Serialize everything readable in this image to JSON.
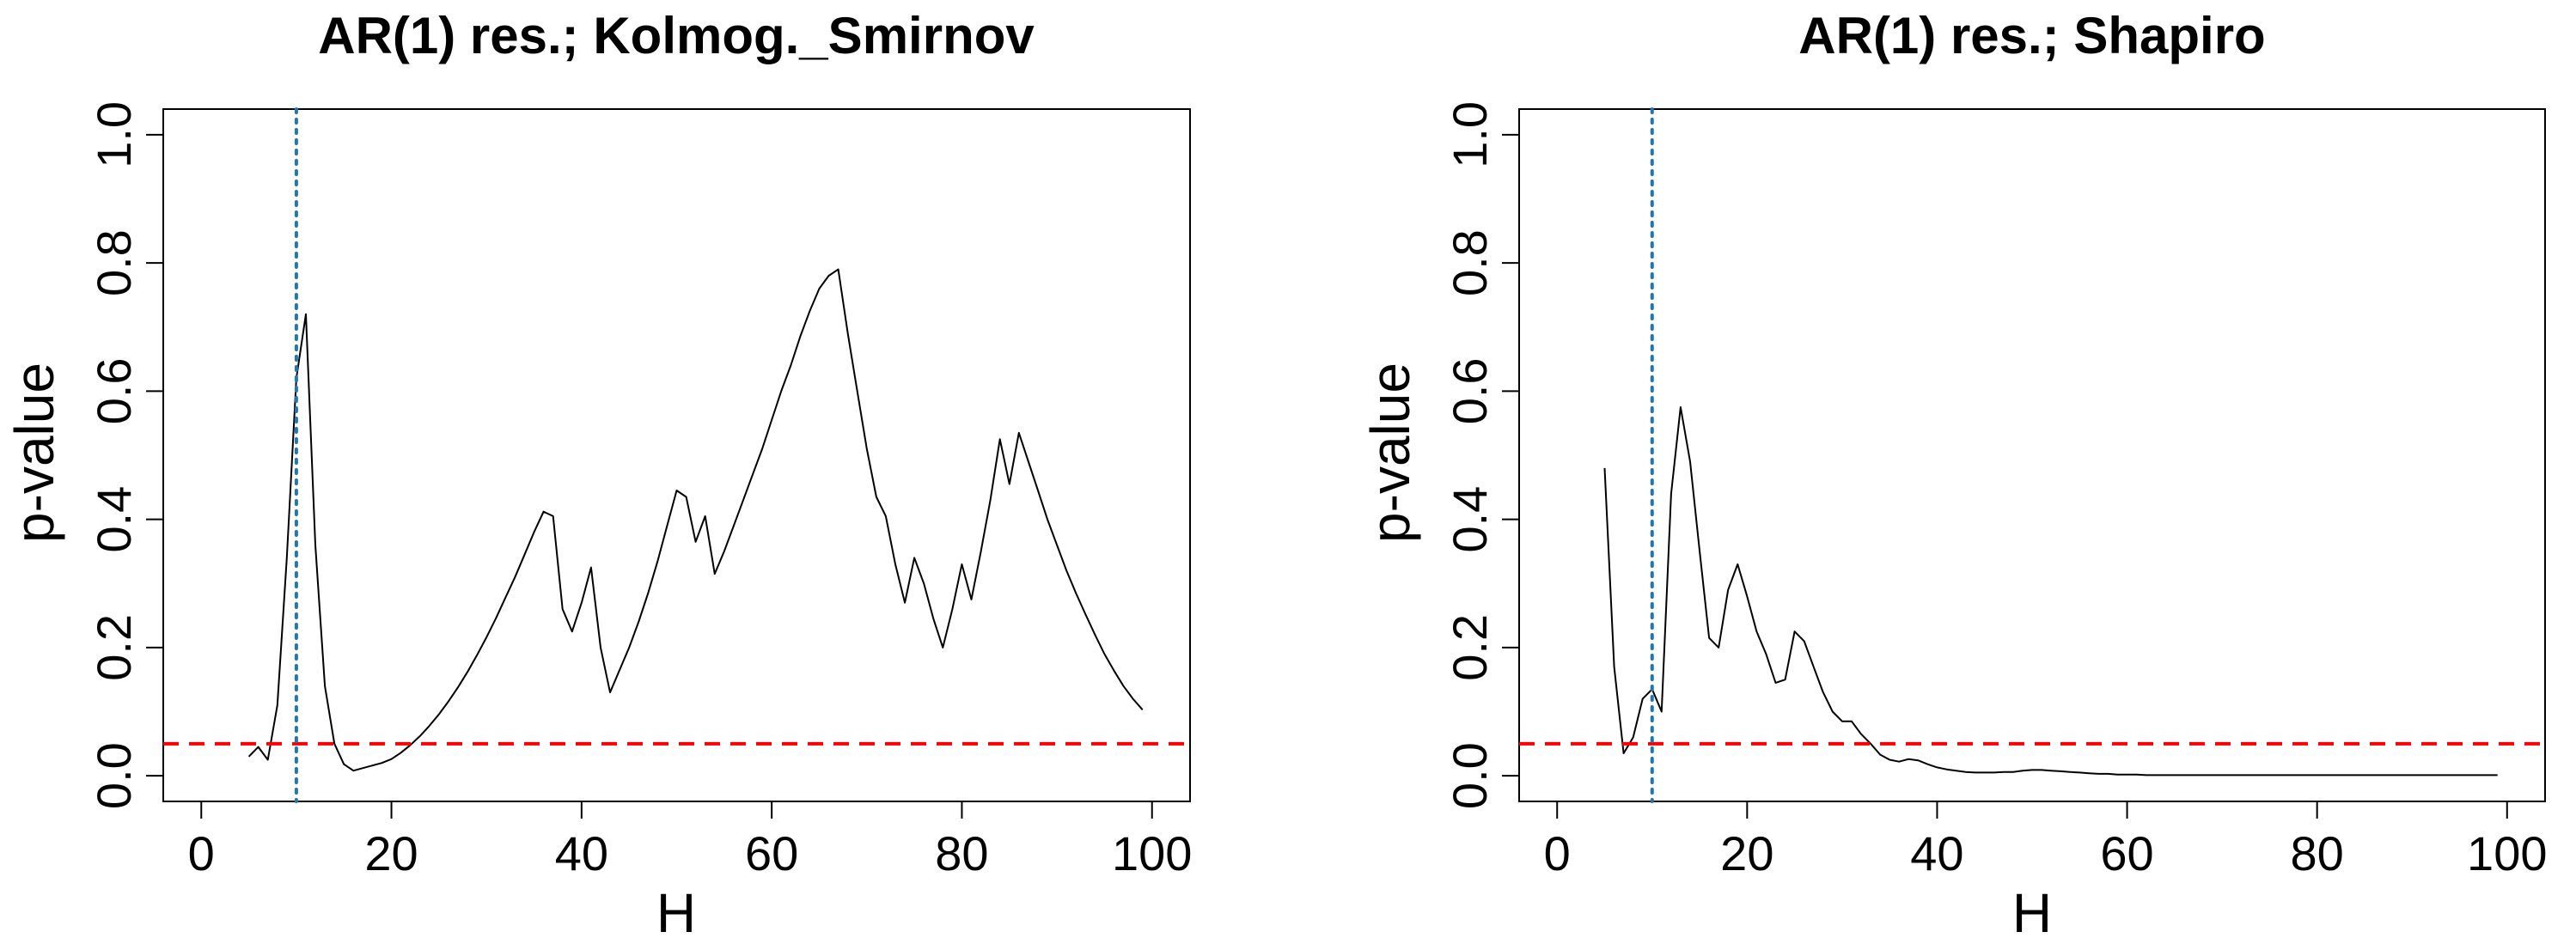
{
  "chart_data": [
    {
      "type": "line",
      "title": "AR(1) res.;  Kolmog._Smirnov",
      "xlabel": "H",
      "ylabel": "p-value",
      "xlim": [
        0,
        100
      ],
      "ylim": [
        0,
        1
      ],
      "xticks": [
        "0",
        "20",
        "40",
        "60",
        "80",
        "100"
      ],
      "yticks": [
        "0.0",
        "0.2",
        "0.4",
        "0.6",
        "0.8",
        "1.0"
      ],
      "grid": false,
      "series": [
        {
          "color": "#000000",
          "x": [
            5,
            6,
            7,
            8,
            9,
            10,
            11,
            12,
            13,
            14,
            15,
            16,
            17,
            18,
            19,
            20,
            21,
            22,
            23,
            24,
            25,
            26,
            27,
            28,
            29,
            30,
            31,
            32,
            33,
            34,
            35,
            36,
            37,
            38,
            39,
            40,
            41,
            42,
            43,
            44,
            45,
            46,
            47,
            48,
            49,
            50,
            51,
            52,
            53,
            54,
            55,
            56,
            57,
            58,
            59,
            60,
            61,
            62,
            63,
            64,
            65,
            66,
            67,
            68,
            69,
            70,
            71,
            72,
            73,
            74,
            75,
            76,
            77,
            78,
            79,
            80,
            81,
            82,
            83,
            84,
            85,
            86,
            87,
            88,
            89,
            90,
            91,
            92,
            93,
            94,
            95,
            96,
            97,
            98,
            99
          ],
          "values": [
            0.03,
            0.045,
            0.025,
            0.11,
            0.34,
            0.62,
            0.72,
            0.36,
            0.14,
            0.05,
            0.018,
            0.008,
            0.012,
            0.016,
            0.02,
            0.026,
            0.036,
            0.048,
            0.062,
            0.078,
            0.096,
            0.116,
            0.138,
            0.162,
            0.188,
            0.216,
            0.246,
            0.278,
            0.31,
            0.345,
            0.38,
            0.412,
            0.405,
            0.26,
            0.225,
            0.27,
            0.325,
            0.2,
            0.13,
            0.165,
            0.2,
            0.24,
            0.285,
            0.335,
            0.39,
            0.445,
            0.435,
            0.365,
            0.405,
            0.315,
            0.35,
            0.39,
            0.43,
            0.47,
            0.51,
            0.555,
            0.6,
            0.64,
            0.685,
            0.725,
            0.76,
            0.78,
            0.79,
            0.69,
            0.6,
            0.51,
            0.435,
            0.405,
            0.33,
            0.27,
            0.34,
            0.3,
            0.245,
            0.2,
            0.26,
            0.33,
            0.275,
            0.35,
            0.43,
            0.525,
            0.455,
            0.535,
            0.49,
            0.445,
            0.4,
            0.36,
            0.32,
            0.285,
            0.252,
            0.22,
            0.19,
            0.164,
            0.14,
            0.12,
            0.103
          ]
        }
      ],
      "hlines": [
        {
          "y": 0.05,
          "color": "#ff0000",
          "style": "dashed"
        }
      ],
      "vlines": [
        {
          "x": 10,
          "color": "#1f77b4",
          "style": "dotted"
        }
      ]
    },
    {
      "type": "line",
      "title": "AR(1) res.;  Shapiro",
      "xlabel": "H",
      "ylabel": "p-value",
      "xlim": [
        0,
        100
      ],
      "ylim": [
        0,
        1
      ],
      "xticks": [
        "0",
        "20",
        "40",
        "60",
        "80",
        "100"
      ],
      "yticks": [
        "0.0",
        "0.2",
        "0.4",
        "0.6",
        "0.8",
        "1.0"
      ],
      "grid": false,
      "series": [
        {
          "color": "#000000",
          "x": [
            5,
            6,
            7,
            8,
            9,
            10,
            11,
            12,
            13,
            14,
            15,
            16,
            17,
            18,
            19,
            20,
            21,
            22,
            23,
            24,
            25,
            26,
            27,
            28,
            29,
            30,
            31,
            32,
            33,
            34,
            35,
            36,
            37,
            38,
            39,
            40,
            41,
            42,
            43,
            44,
            45,
            46,
            47,
            48,
            49,
            50,
            51,
            52,
            53,
            54,
            55,
            56,
            57,
            58,
            59,
            60,
            61,
            62,
            63,
            64,
            65,
            66,
            67,
            68,
            69,
            70,
            71,
            72,
            73,
            74,
            75,
            76,
            77,
            78,
            79,
            80,
            81,
            82,
            83,
            84,
            85,
            86,
            87,
            88,
            89,
            90,
            91,
            92,
            93,
            94,
            95,
            96,
            97,
            98,
            99
          ],
          "values": [
            0.48,
            0.17,
            0.035,
            0.06,
            0.12,
            0.135,
            0.1,
            0.44,
            0.575,
            0.49,
            0.35,
            0.215,
            0.2,
            0.29,
            0.33,
            0.28,
            0.225,
            0.19,
            0.145,
            0.15,
            0.225,
            0.21,
            0.17,
            0.13,
            0.1,
            0.085,
            0.085,
            0.065,
            0.05,
            0.033,
            0.025,
            0.022,
            0.026,
            0.024,
            0.018,
            0.013,
            0.01,
            0.008,
            0.006,
            0.005,
            0.005,
            0.005,
            0.006,
            0.006,
            0.008,
            0.009,
            0.009,
            0.008,
            0.007,
            0.006,
            0.005,
            0.004,
            0.003,
            0.003,
            0.002,
            0.002,
            0.002,
            0.001,
            0.001,
            0.001,
            0.001,
            0.001,
            0.001,
            0.001,
            0.001,
            0.001,
            0.001,
            0.001,
            0.001,
            0.001,
            0.001,
            0.001,
            0.001,
            0.001,
            0.001,
            0.001,
            0.001,
            0.001,
            0.001,
            0.001,
            0.001,
            0.001,
            0.001,
            0.001,
            0.001,
            0.001,
            0.001,
            0.001,
            0.001,
            0.001,
            0.001,
            0.001,
            0.001,
            0.001,
            0.001
          ]
        }
      ],
      "hlines": [
        {
          "y": 0.05,
          "color": "#ff0000",
          "style": "dashed"
        }
      ],
      "vlines": [
        {
          "x": 10,
          "color": "#1f77b4",
          "style": "dotted"
        }
      ]
    }
  ]
}
